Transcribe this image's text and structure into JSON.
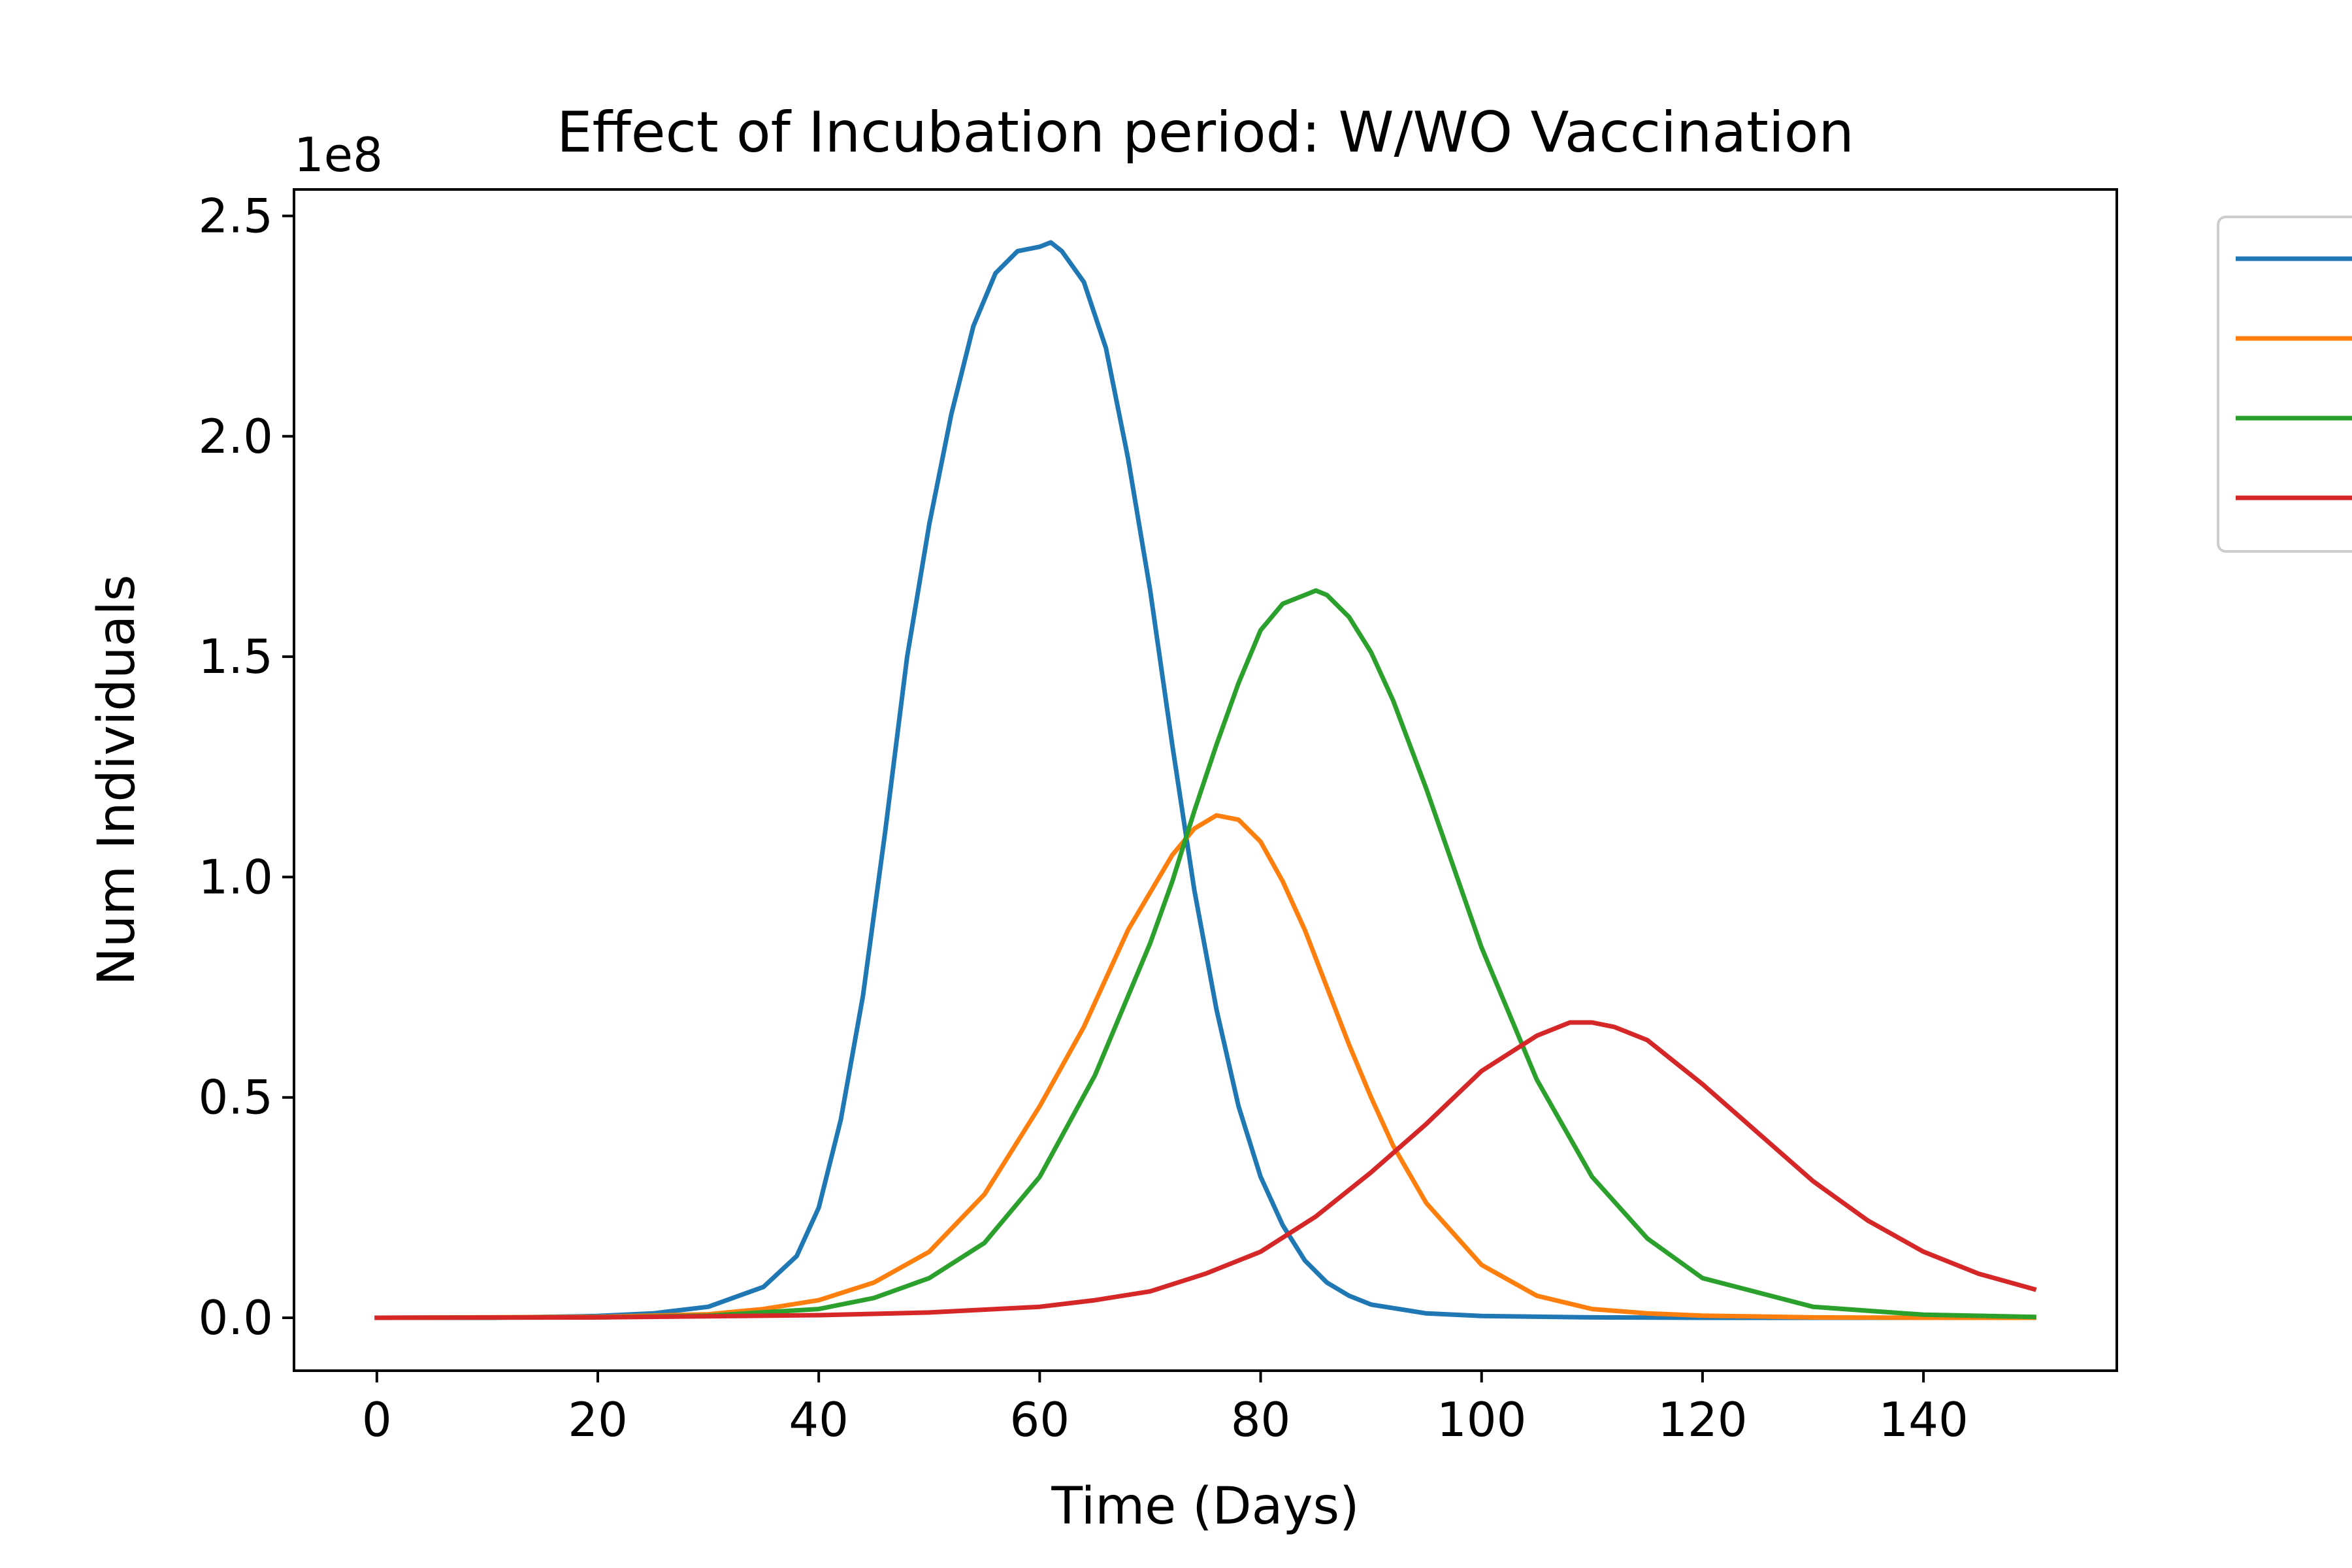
{
  "chart_data": {
    "type": "line",
    "title": "Effect of Incubation period: W/WO Vaccination",
    "xlabel": "Time (Days)",
    "ylabel": "Num Individuals",
    "y_offset_label": "1e8",
    "y_scale_factor": 100000000,
    "xlim": [
      -7.5,
      157.5
    ],
    "ylim": [
      -12000000,
      256000000
    ],
    "xticks": [
      0,
      20,
      40,
      60,
      80,
      100,
      120,
      140
    ],
    "yticks": [
      0,
      50000000,
      100000000,
      150000000,
      200000000,
      250000000
    ],
    "ytick_labels": [
      "0.0",
      "0.5",
      "1.0",
      "1.5",
      "2.0",
      "2.5"
    ],
    "grid": false,
    "legend_placement": "outside-right (clipped, labels not visible)",
    "series": [
      {
        "color": "#1f77b4",
        "x": [
          0,
          10,
          20,
          25,
          30,
          35,
          38,
          40,
          42,
          44,
          46,
          48,
          50,
          52,
          54,
          56,
          58,
          60,
          61,
          62,
          64,
          66,
          68,
          70,
          72,
          74,
          76,
          78,
          80,
          82,
          84,
          86,
          88,
          90,
          95,
          100,
          110,
          120,
          130,
          140,
          150
        ],
        "y": [
          0,
          0,
          400000,
          1000000,
          2500000,
          7000000,
          14000000,
          25000000,
          45000000,
          73000000,
          110000000,
          150000000,
          180000000,
          205000000,
          225000000,
          237000000,
          242000000,
          243000000,
          244000000,
          242000000,
          235000000,
          220000000,
          195000000,
          165000000,
          130000000,
          97000000,
          70000000,
          48000000,
          32000000,
          21000000,
          13000000,
          8000000,
          5000000,
          3000000,
          1000000,
          400000,
          100000,
          0,
          0,
          0,
          0
        ]
      },
      {
        "color": "#ff7f0e",
        "x": [
          0,
          20,
          30,
          35,
          40,
          45,
          50,
          55,
          60,
          64,
          68,
          72,
          74,
          76,
          78,
          80,
          82,
          84,
          86,
          88,
          90,
          92,
          95,
          100,
          105,
          110,
          115,
          120,
          130,
          140,
          150
        ],
        "y": [
          0,
          200000,
          800000,
          2000000,
          4000000,
          8000000,
          15000000,
          28000000,
          48000000,
          66000000,
          88000000,
          105000000,
          111000000,
          114000000,
          113000000,
          108000000,
          99000000,
          88000000,
          75000000,
          62000000,
          50000000,
          39000000,
          26000000,
          12000000,
          5000000,
          2000000,
          1000000,
          500000,
          100000,
          0,
          0
        ]
      },
      {
        "color": "#2ca02c",
        "x": [
          0,
          20,
          30,
          40,
          45,
          50,
          55,
          60,
          65,
          70,
          72,
          74,
          76,
          78,
          80,
          82,
          84,
          85,
          86,
          88,
          90,
          92,
          95,
          100,
          105,
          110,
          115,
          120,
          130,
          140,
          150
        ],
        "y": [
          0,
          100000,
          500000,
          2000000,
          4500000,
          9000000,
          17000000,
          32000000,
          55000000,
          85000000,
          99000000,
          115000000,
          130000000,
          144000000,
          156000000,
          162000000,
          164000000,
          165000000,
          164000000,
          159000000,
          151000000,
          140000000,
          120000000,
          84000000,
          54000000,
          32000000,
          18000000,
          9000000,
          2500000,
          700000,
          200000
        ]
      },
      {
        "color": "#d62728",
        "x": [
          0,
          20,
          40,
          50,
          60,
          65,
          70,
          75,
          80,
          85,
          90,
          95,
          100,
          105,
          108,
          110,
          112,
          115,
          120,
          125,
          130,
          135,
          140,
          145,
          150
        ],
        "y": [
          0,
          100000,
          600000,
          1200000,
          2500000,
          4000000,
          6000000,
          10000000,
          15000000,
          23000000,
          33000000,
          44000000,
          56000000,
          64000000,
          67000000,
          67000000,
          66000000,
          63000000,
          53000000,
          42000000,
          31000000,
          22000000,
          15000000,
          10000000,
          6500000
        ]
      }
    ]
  }
}
